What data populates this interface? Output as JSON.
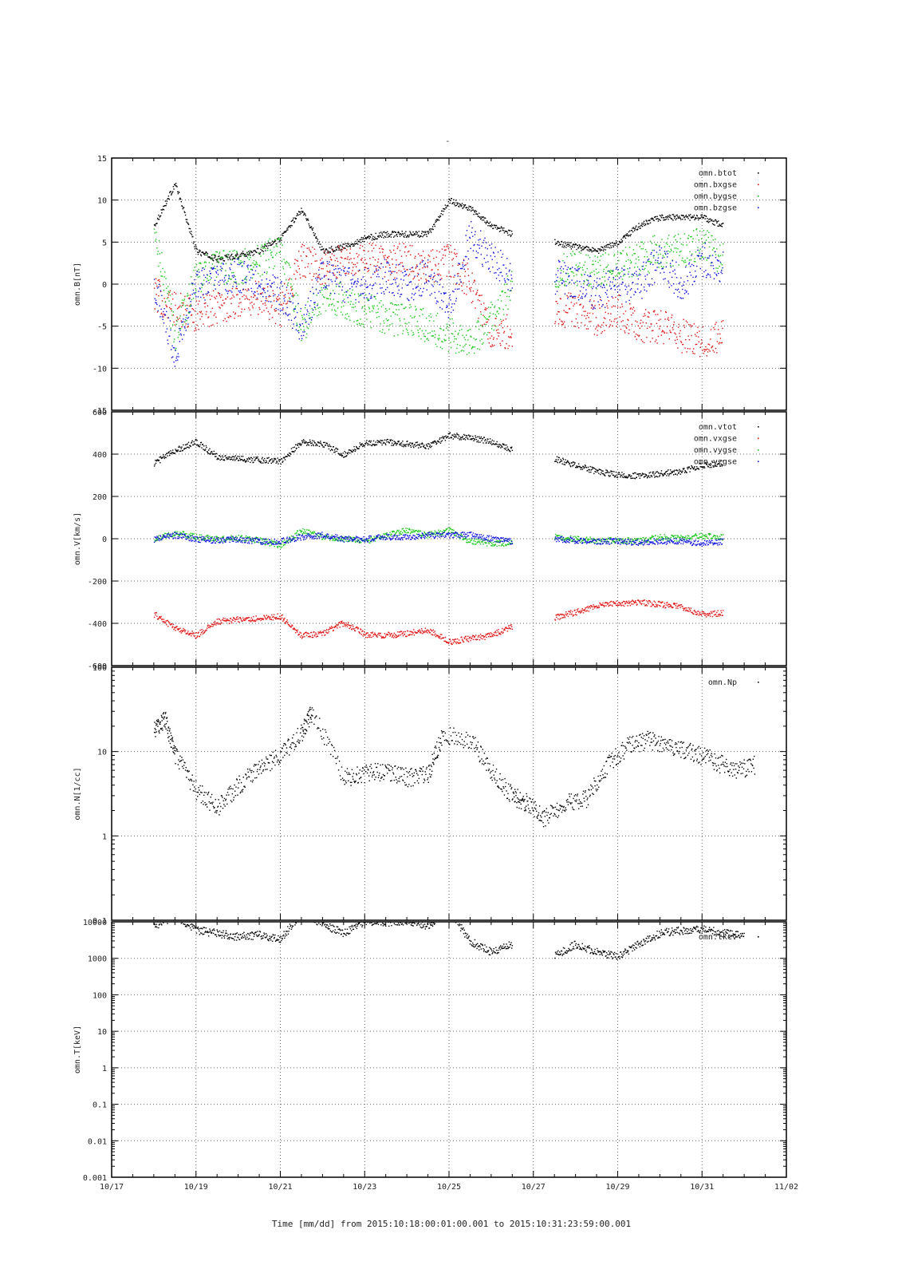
{
  "title": "-",
  "time_axis": {
    "xlabel": "Time [mm/dd]  from 2015:10:18:00:01:00.001  to  2015:10:31:23:59:00.001",
    "ticks": [
      "10/17",
      "10/19",
      "10/21",
      "10/23",
      "10/25",
      "10/27",
      "10/29",
      "10/31",
      "11/02"
    ],
    "range_days": [
      17,
      33
    ]
  },
  "colors": {
    "black": "#000000",
    "red": "#e01010",
    "green": "#18c818",
    "blue": "#1010e0"
  },
  "chart_data": [
    {
      "type": "scatter",
      "panel": "B",
      "ylabel": "omn.B[nT]",
      "ylim": [
        -15,
        15
      ],
      "yticks": [
        "15",
        "10",
        "5",
        "0",
        "-5",
        "-10",
        "-15"
      ],
      "grid": true,
      "legend_position": "top-right",
      "x": [
        "10/18",
        "10/18 12:00",
        "10/19",
        "10/19 12:00",
        "10/20",
        "10/20 12:00",
        "10/21",
        "10/21 12:00",
        "10/22",
        "10/22 12:00",
        "10/23",
        "10/23 12:00",
        "10/24",
        "10/24 12:00",
        "10/25",
        "10/25 12:00",
        "10/26",
        "10/26 12:00",
        "10/27",
        "10/27 12:00",
        "10/28",
        "10/28 12:00",
        "10/29",
        "10/29 12:00",
        "10/30",
        "10/30 12:00",
        "10/31",
        "10/31 12:00",
        "11/01"
      ],
      "series": [
        {
          "name": "omn.btot",
          "color": "black",
          "values": [
            7,
            12,
            4,
            3,
            3.5,
            4,
            5.5,
            9,
            4,
            4.5,
            5.5,
            6,
            6,
            6,
            10,
            9,
            7,
            6,
            null,
            5,
            4.5,
            4,
            5,
            7,
            8,
            8,
            8,
            7,
            null
          ]
        },
        {
          "name": "omn.bxgse",
          "color": "red",
          "values": [
            -1,
            -3,
            -3.5,
            -2.5,
            -2,
            -1.5,
            -3,
            3,
            2,
            3,
            3,
            2.5,
            3,
            2,
            3,
            0,
            -6,
            -5.5,
            null,
            -3,
            -3,
            -4,
            -3,
            -5,
            -5,
            -6,
            -7,
            -6,
            null
          ]
        },
        {
          "name": "omn.bygse",
          "color": "green",
          "values": [
            6,
            -6,
            1,
            2,
            2,
            3,
            4,
            -5,
            -1,
            -2,
            -3,
            -4,
            -4,
            -5,
            -6,
            -7,
            -4,
            0,
            null,
            1.5,
            2,
            1.5,
            2,
            3,
            4,
            4,
            5,
            3,
            null
          ]
        },
        {
          "name": "omn.bzgse",
          "color": "blue",
          "values": [
            0,
            -8,
            0,
            0.5,
            1,
            0,
            -1,
            -5,
            1,
            0,
            0,
            1,
            0,
            1,
            -3,
            6,
            3,
            1,
            null,
            1,
            0,
            -1,
            0,
            0,
            3,
            0,
            3,
            2,
            null
          ]
        }
      ]
    },
    {
      "type": "scatter",
      "panel": "V",
      "ylabel": "omn.V[km/s]",
      "ylim": [
        -600,
        600
      ],
      "yticks": [
        "600",
        "400",
        "200",
        "0",
        "-200",
        "-400",
        "-600"
      ],
      "grid": true,
      "legend_position": "top-right",
      "x": [
        "10/18",
        "10/18 12:00",
        "10/19",
        "10/19 12:00",
        "10/20",
        "10/20 12:00",
        "10/21",
        "10/21 12:00",
        "10/22",
        "10/22 12:00",
        "10/23",
        "10/23 12:00",
        "10/24",
        "10/24 12:00",
        "10/25",
        "10/25 12:00",
        "10/26",
        "10/26 12:00",
        "10/27",
        "10/27 12:00",
        "10/28",
        "10/28 12:00",
        "10/29",
        "10/29 12:00",
        "10/30",
        "10/30 12:00",
        "10/31",
        "10/31 12:00",
        "11/01"
      ],
      "series": [
        {
          "name": "omn.vtot",
          "color": "black",
          "values": [
            360,
            420,
            460,
            390,
            380,
            375,
            370,
            460,
            450,
            400,
            455,
            460,
            450,
            440,
            490,
            480,
            460,
            420,
            null,
            380,
            350,
            320,
            305,
            300,
            310,
            320,
            350,
            360,
            null
          ]
        },
        {
          "name": "omn.vxgse",
          "color": "red",
          "values": [
            -355,
            -420,
            -455,
            -390,
            -380,
            -375,
            -365,
            -455,
            -445,
            -395,
            -450,
            -455,
            -445,
            -430,
            -485,
            -470,
            -455,
            -410,
            null,
            -370,
            -345,
            -315,
            -303,
            -298,
            -308,
            -318,
            -355,
            -348,
            null
          ]
        },
        {
          "name": "omn.vygse",
          "color": "green",
          "values": [
            0,
            30,
            10,
            0,
            5,
            -5,
            -30,
            40,
            10,
            0,
            -10,
            20,
            40,
            20,
            40,
            -10,
            -20,
            -20,
            null,
            10,
            0,
            -5,
            -5,
            -10,
            10,
            5,
            15,
            10,
            null
          ]
        },
        {
          "name": "omn.vzgse",
          "color": "blue",
          "values": [
            0,
            20,
            0,
            -5,
            0,
            -10,
            -10,
            10,
            20,
            0,
            0,
            10,
            10,
            20,
            20,
            20,
            0,
            -10,
            null,
            0,
            -5,
            -10,
            -10,
            -15,
            -10,
            -10,
            -20,
            -10,
            null
          ]
        }
      ]
    },
    {
      "type": "scatter",
      "panel": "N",
      "ylabel": "omn.N[1/cc]",
      "ylim": [
        0.1,
        100
      ],
      "yscale": "log",
      "yticks": [
        "100",
        "10",
        "1",
        "0.1"
      ],
      "grid": true,
      "legend_position": "top-right",
      "x": [
        "10/18",
        "10/18 06:00",
        "10/18 12:00",
        "10/19",
        "10/19 12:00",
        "10/20",
        "10/20 12:00",
        "10/21",
        "10/21 12:00",
        "10/21 18:00",
        "10/22 12:00",
        "10/23",
        "10/23 12:00",
        "10/24",
        "10/24 12:00",
        "10/24 20:00",
        "10/25 12:00",
        "10/26",
        "10/26 12:00",
        "10/26 20:00",
        "10/27 06:00",
        "10/27 18:00",
        "10/28 06:00",
        "10/28 18:00",
        "10/29 06:00",
        "10/29 18:00",
        "10/30 06:00",
        "10/30 18:00",
        "10/31 06:00",
        "10/31 18:00",
        "11/01 06:00"
      ],
      "series": [
        {
          "name": "omn.Np",
          "color": "black",
          "values": [
            18,
            25,
            9,
            3.5,
            2.2,
            4,
            6.5,
            9,
            17,
            30,
            5,
            5.5,
            6,
            5,
            5.5,
            16,
            14,
            6,
            3,
            2.5,
            1.6,
            2.5,
            2.8,
            7,
            12,
            14,
            11,
            10,
            8,
            6,
            7
          ]
        }
      ]
    },
    {
      "type": "scatter",
      "panel": "T",
      "ylabel": "omn.T[keV]",
      "ylim": [
        0.001,
        10000
      ],
      "yscale": "log",
      "yticks": [
        "10000",
        "1000",
        "100",
        "10",
        "1",
        "0.1",
        "0.01",
        "0.001"
      ],
      "grid": true,
      "legend_position": "top-right",
      "x": [
        "10/18",
        "10/18 12:00",
        "10/19",
        "10/19 12:00",
        "10/20",
        "10/20 12:00",
        "10/21",
        "10/21 12:00",
        "10/22",
        "10/22 12:00",
        "10/23",
        "10/23 12:00",
        "10/24",
        "10/24 12:00",
        "10/25",
        "10/25 12:00",
        "10/26",
        "10/26 12:00",
        "10/27",
        "10/27 12:00",
        "10/28",
        "10/28 12:00",
        "10/29",
        "10/29 12:00",
        "10/30",
        "10/30 12:00",
        "10/31",
        "10/31 12:00",
        "11/01"
      ],
      "series": [
        {
          "name": "omn.tkev",
          "color": "black",
          "values": [
            8000,
            15000,
            6000,
            5000,
            4000,
            4500,
            3500,
            18000,
            9000,
            5000,
            11000,
            10000,
            11000,
            8000,
            20000,
            3000,
            1500,
            2500,
            null,
            1200,
            2500,
            1500,
            1200,
            2500,
            5000,
            6000,
            6500,
            5000,
            4500
          ]
        }
      ]
    }
  ]
}
